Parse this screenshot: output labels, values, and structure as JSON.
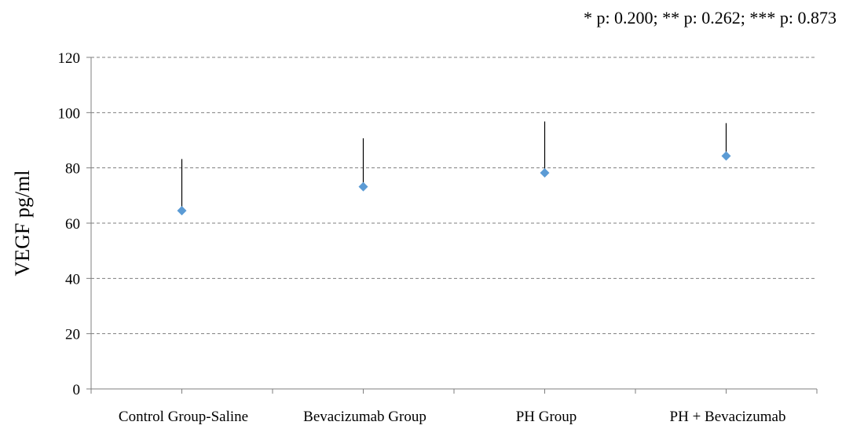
{
  "chart_data": {
    "type": "scatter",
    "annotation": "* p: 0.200; ** p: 0.262; *** p: 0.873",
    "ylabel": "VEGF pg/ml",
    "xlabel": "",
    "ylim": [
      0,
      120
    ],
    "yticks": [
      0,
      20,
      40,
      60,
      80,
      100,
      120
    ],
    "grid": true,
    "categories": [
      "Control Group-Saline",
      "Bevacizumab Group",
      "PH Group",
      "PH + Bevacizumab"
    ],
    "values": [
      64.5,
      73.2,
      78.2,
      84.3
    ],
    "error_upper": [
      83.2,
      90.7,
      96.8,
      96.2
    ],
    "colors": {
      "marker": "#5b9bd5",
      "grid": "#7f7f7f",
      "axis": "#7f7f7f",
      "errorbar": "#000000"
    }
  }
}
